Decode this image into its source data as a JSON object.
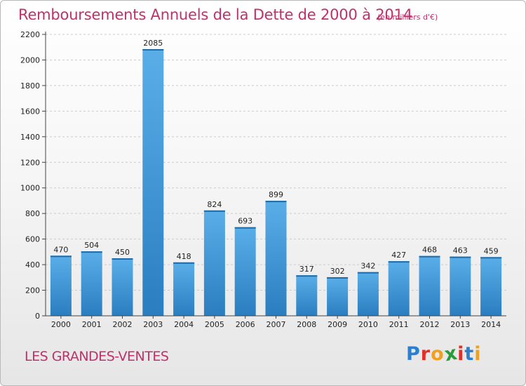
{
  "title": "Remboursements Annuels de la Dette de 2000 à 2014",
  "unit": "(en milliers d'€)",
  "commune": "LES GRANDES-VENTES",
  "logo": {
    "text": "Proxiti",
    "letters": [
      {
        "char": "P",
        "color": "#2a7fd0"
      },
      {
        "char": "r",
        "color": "#e0302a"
      },
      {
        "char": "o",
        "color": "#f0a020"
      },
      {
        "char": "x",
        "color": "#2a9a3a"
      },
      {
        "char": "i",
        "color": "#e0302a"
      },
      {
        "char": "t",
        "color": "#2a7fd0"
      },
      {
        "char": "i",
        "color": "#f0a020"
      }
    ]
  },
  "colors": {
    "accent": "#c0306b",
    "bar_top": "#5aaee8",
    "bar_bottom": "#2a7ec0",
    "grid": "#cccccc",
    "axis": "#444444"
  },
  "chart_data": {
    "type": "bar",
    "categories": [
      "2000",
      "2001",
      "2002",
      "2003",
      "2004",
      "2005",
      "2006",
      "2007",
      "2008",
      "2009",
      "2010",
      "2011",
      "2012",
      "2013",
      "2014"
    ],
    "values": [
      470,
      504,
      450,
      2085,
      418,
      824,
      693,
      899,
      317,
      302,
      342,
      427,
      468,
      463,
      459
    ],
    "ylim": [
      0,
      2200
    ],
    "yticks": [
      0,
      200,
      400,
      600,
      800,
      1000,
      1200,
      1400,
      1600,
      1800,
      2000,
      2200
    ],
    "grid": true,
    "grid_style": "dashed"
  }
}
